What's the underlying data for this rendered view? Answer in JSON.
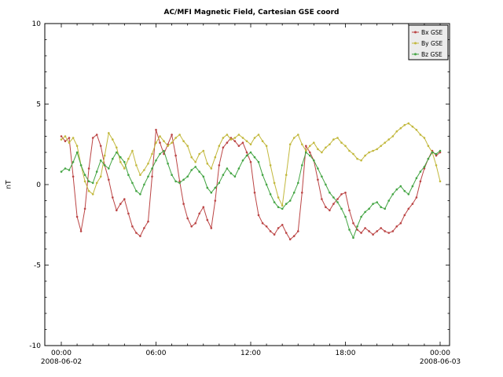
{
  "chart_data": {
    "type": "line",
    "title": "AC/MFI Magnetic Field, Cartesian GSE coord",
    "ylabel": "nT",
    "xlabel": "",
    "ylim": [
      -10,
      10
    ],
    "yticks": [
      -10,
      -5,
      0,
      5,
      10
    ],
    "x_range_hours": [
      0,
      24
    ],
    "x_step_hours": 0.25,
    "grid": false,
    "legend_position": "top-right",
    "xticks": [
      {
        "hour": 0,
        "label": "00:00",
        "sub": "2008-06-02"
      },
      {
        "hour": 6,
        "label": "06:00"
      },
      {
        "hour": 12,
        "label": "12:00"
      },
      {
        "hour": 18,
        "label": "18:00"
      },
      {
        "hour": 24,
        "label": "00:00",
        "sub": "2008-06-03"
      }
    ],
    "series": [
      {
        "name": "Bx GSE",
        "color": "#bb4444",
        "values": [
          3.0,
          2.7,
          2.9,
          0.5,
          -2.0,
          -2.9,
          -1.5,
          1.0,
          2.9,
          3.1,
          2.4,
          1.2,
          0.3,
          -0.8,
          -1.6,
          -1.2,
          -0.9,
          -1.8,
          -2.6,
          -3.0,
          -3.2,
          -2.7,
          -2.3,
          0.5,
          3.4,
          2.6,
          1.9,
          2.5,
          3.1,
          1.8,
          0.2,
          -1.2,
          -2.1,
          -2.6,
          -2.4,
          -1.8,
          -1.4,
          -2.2,
          -2.7,
          -1.0,
          1.2,
          2.3,
          2.6,
          2.9,
          2.7,
          2.4,
          2.6,
          2.0,
          1.4,
          -0.5,
          -1.9,
          -2.4,
          -2.6,
          -2.9,
          -3.1,
          -2.7,
          -2.5,
          -3.0,
          -3.4,
          -3.2,
          -2.9,
          -0.5,
          2.4,
          2.0,
          1.5,
          0.3,
          -0.9,
          -1.4,
          -1.6,
          -1.2,
          -0.9,
          -0.6,
          -0.5,
          -1.6,
          -2.4,
          -2.8,
          -3.0,
          -2.7,
          -2.9,
          -3.1,
          -2.9,
          -2.7,
          -2.9,
          -3.0,
          -2.9,
          -2.6,
          -2.4,
          -1.9,
          -1.5,
          -1.2,
          -0.8,
          0.2,
          1.0,
          1.6,
          2.1,
          1.8,
          2.0
        ]
      },
      {
        "name": "By GSE",
        "color": "#c2b83c",
        "values": [
          2.8,
          3.0,
          2.6,
          2.9,
          2.4,
          1.2,
          0.2,
          -0.4,
          -0.6,
          0.1,
          0.5,
          1.8,
          3.2,
          2.8,
          2.3,
          1.4,
          1.0,
          1.6,
          2.1,
          1.2,
          0.6,
          0.9,
          1.3,
          1.9,
          2.6,
          3.0,
          2.7,
          2.4,
          2.6,
          2.9,
          3.1,
          2.7,
          2.4,
          1.7,
          1.4,
          1.9,
          2.1,
          1.3,
          1.0,
          1.7,
          2.4,
          2.9,
          3.1,
          2.8,
          2.9,
          3.1,
          2.9,
          2.7,
          2.5,
          2.9,
          3.1,
          2.7,
          2.4,
          1.2,
          0.1,
          -0.8,
          -1.3,
          0.6,
          2.5,
          2.9,
          3.1,
          2.5,
          2.1,
          2.4,
          2.6,
          2.2,
          2.0,
          2.3,
          2.5,
          2.8,
          2.9,
          2.6,
          2.4,
          2.1,
          1.9,
          1.6,
          1.5,
          1.8,
          2.0,
          2.1,
          2.2,
          2.4,
          2.6,
          2.8,
          3.0,
          3.3,
          3.5,
          3.7,
          3.8,
          3.6,
          3.4,
          3.1,
          2.9,
          2.4,
          2.0,
          1.2,
          0.2
        ]
      },
      {
        "name": "Bz GSE",
        "color": "#44a544",
        "values": [
          0.8,
          1.0,
          0.9,
          1.4,
          2.0,
          1.2,
          0.6,
          0.2,
          0.1,
          0.8,
          1.5,
          1.2,
          1.0,
          1.6,
          2.0,
          1.7,
          1.4,
          0.6,
          0.1,
          -0.4,
          -0.6,
          0.0,
          0.5,
          1.0,
          1.5,
          1.9,
          2.1,
          1.3,
          0.6,
          0.2,
          0.1,
          0.3,
          0.5,
          0.9,
          1.1,
          0.8,
          0.5,
          -0.2,
          -0.5,
          -0.2,
          0.1,
          0.6,
          1.0,
          0.7,
          0.5,
          1.0,
          1.5,
          1.8,
          2.0,
          1.7,
          1.4,
          0.6,
          0.0,
          -0.6,
          -1.1,
          -1.4,
          -1.5,
          -1.2,
          -1.0,
          -0.5,
          0.1,
          1.2,
          2.0,
          1.8,
          1.5,
          1.0,
          0.5,
          0.0,
          -0.5,
          -0.8,
          -1.1,
          -1.5,
          -2.0,
          -2.8,
          -3.3,
          -2.6,
          -2.0,
          -1.7,
          -1.5,
          -1.2,
          -1.1,
          -1.4,
          -1.5,
          -1.0,
          -0.6,
          -0.3,
          -0.1,
          -0.4,
          -0.6,
          -0.1,
          0.4,
          0.8,
          1.1,
          1.6,
          2.0,
          1.9,
          2.1
        ]
      }
    ]
  }
}
